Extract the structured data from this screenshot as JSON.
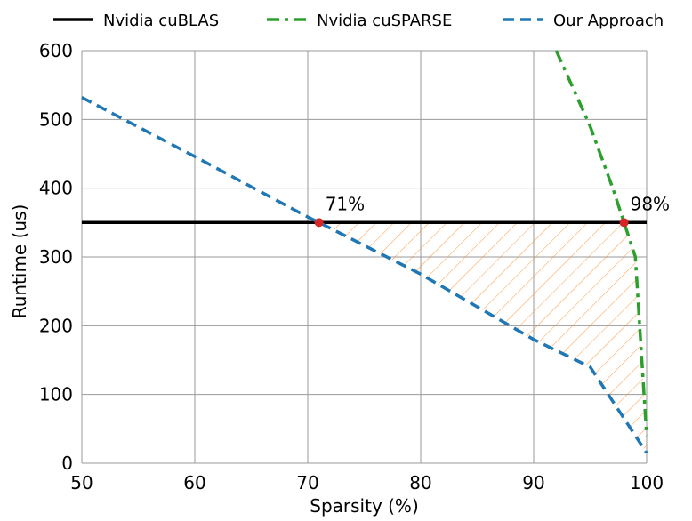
{
  "chart_data": {
    "type": "line",
    "xlabel": "Sparsity (%)",
    "ylabel": "Runtime (us)",
    "xlim": [
      50,
      100
    ],
    "ylim": [
      0,
      600
    ],
    "xticks": [
      50,
      60,
      70,
      80,
      90,
      100
    ],
    "yticks": [
      0,
      100,
      200,
      300,
      400,
      500,
      600
    ],
    "grid": true,
    "legend_position": "top",
    "series": [
      {
        "name": "Nvidia cuBLAS",
        "style": "solid",
        "color": "#000000",
        "x": [
          50,
          100
        ],
        "y": [
          350,
          350
        ]
      },
      {
        "name": "Nvidia cuSPARSE",
        "style": "dashdot",
        "color": "#2ca02c",
        "x": [
          92,
          95,
          97,
          98,
          99,
          99.5,
          100
        ],
        "y": [
          600,
          490,
          400,
          350,
          300,
          170,
          40
        ]
      },
      {
        "name": "Our Approach",
        "style": "dashed",
        "color": "#1f77b4",
        "x": [
          50,
          60,
          70,
          71,
          80,
          90,
          95,
          100
        ],
        "y": [
          532,
          446,
          358,
          350,
          275,
          180,
          140,
          15
        ]
      }
    ],
    "annotations": [
      {
        "text": "71%",
        "x": 71,
        "y": 350
      },
      {
        "text": "98%",
        "x": 98,
        "y": 350
      }
    ],
    "marker_color": "#d62728",
    "hatch_color": "#ff7f0e"
  }
}
